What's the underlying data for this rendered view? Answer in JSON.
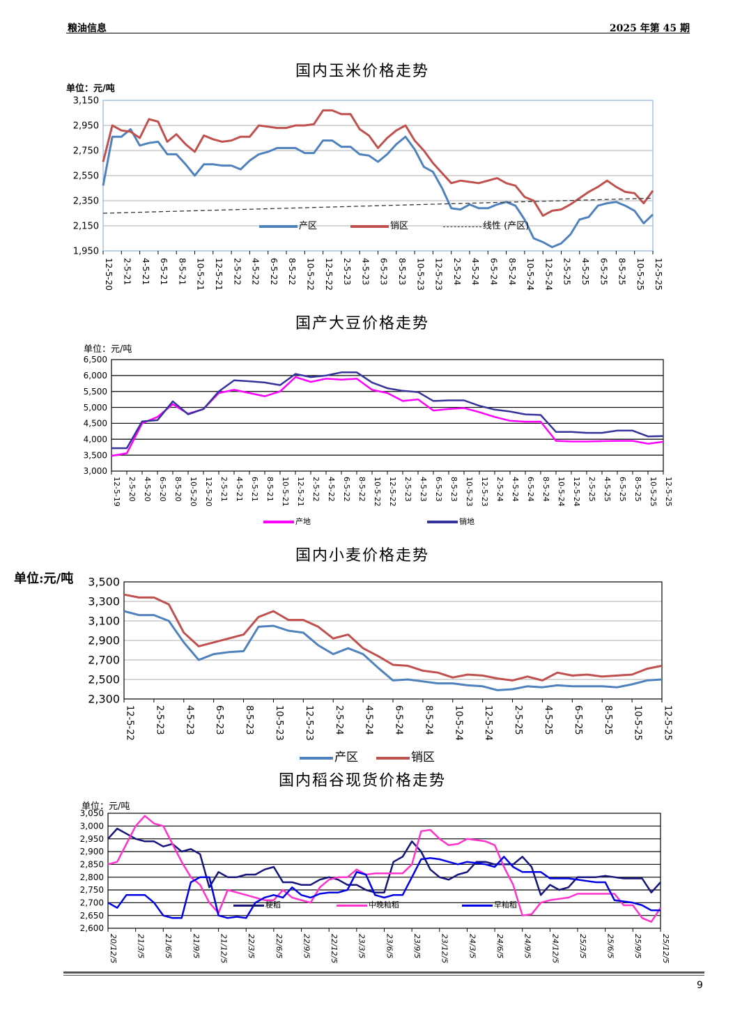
{
  "header": {
    "left": "粮油信息",
    "right": "2025 年第 45 期"
  },
  "page_number": "9",
  "chart_data": [
    {
      "type": "line",
      "title": "国内玉米价格走势",
      "unit": "单位：元/吨",
      "ylim": [
        1950,
        3150
      ],
      "yticks": [
        "1,950",
        "2,150",
        "2,350",
        "2,550",
        "2,750",
        "2,950",
        "3,150"
      ],
      "xlim": [
        "2020-12",
        "2025-12"
      ],
      "xticks": [
        "12-5-20",
        "2-5-21",
        "4-5-21",
        "6-5-21",
        "8-5-21",
        "10-5-21",
        "12-5-21",
        "2-5-22",
        "4-5-22",
        "6-5-22",
        "8-5-22",
        "10-5-22",
        "12-5-22",
        "2-5-23",
        "4-5-23",
        "6-5-23",
        "8-5-23",
        "10-5-23",
        "12-5-23",
        "2-5-24",
        "4-5-24",
        "6-5-24",
        "8-5-24",
        "10-5-24",
        "12-5-24",
        "2-5-25",
        "4-5-25",
        "6-5-25",
        "8-5-25",
        "10-5-25",
        "12-5-25"
      ],
      "grid": true,
      "legend": "bottom-inside",
      "x": "monthly from 2020-12 to 2025-12",
      "series": [
        {
          "name": "产区",
          "color": "#4f81bd",
          "values": [
            2470,
            2860,
            2860,
            2920,
            2790,
            2810,
            2820,
            2720,
            2720,
            2640,
            2550,
            2640,
            2640,
            2630,
            2630,
            2600,
            2670,
            2720,
            2740,
            2770,
            2770,
            2770,
            2730,
            2730,
            2830,
            2830,
            2780,
            2780,
            2720,
            2710,
            2660,
            2720,
            2800,
            2860,
            2760,
            2620,
            2580,
            2450,
            2290,
            2280,
            2320,
            2290,
            2290,
            2320,
            2340,
            2310,
            2200,
            2050,
            2020,
            1980,
            2010,
            2080,
            2200,
            2220,
            2310,
            2330,
            2340,
            2310,
            2270,
            2170,
            2240
          ]
        },
        {
          "name": "销区",
          "color": "#c0504d",
          "values": [
            2660,
            2950,
            2910,
            2900,
            2850,
            3000,
            2980,
            2820,
            2880,
            2800,
            2740,
            2870,
            2840,
            2820,
            2830,
            2860,
            2860,
            2950,
            2940,
            2930,
            2930,
            2950,
            2950,
            2960,
            3070,
            3070,
            3040,
            3040,
            2920,
            2870,
            2770,
            2850,
            2910,
            2950,
            2830,
            2750,
            2650,
            2570,
            2490,
            2510,
            2500,
            2490,
            2510,
            2530,
            2490,
            2470,
            2380,
            2350,
            2230,
            2270,
            2280,
            2320,
            2370,
            2420,
            2460,
            2510,
            2460,
            2420,
            2410,
            2330,
            2430
          ]
        },
        {
          "name": "线性 (产区)",
          "color": "#333333",
          "dashed": true,
          "values": [
            2250,
            null,
            null,
            null,
            null,
            null,
            null,
            null,
            null,
            null,
            null,
            null,
            null,
            null,
            null,
            null,
            null,
            null,
            null,
            null,
            null,
            null,
            null,
            null,
            null,
            null,
            null,
            null,
            null,
            null,
            null,
            null,
            null,
            null,
            null,
            null,
            null,
            null,
            null,
            null,
            null,
            null,
            null,
            null,
            null,
            null,
            null,
            null,
            null,
            null,
            null,
            null,
            null,
            null,
            null,
            null,
            null,
            null,
            null,
            null,
            2370
          ]
        }
      ]
    },
    {
      "type": "line",
      "title": "国产大豆价格走势",
      "unit": "单位：元/吨",
      "ylim": [
        3000,
        6500
      ],
      "yticks": [
        "3,000",
        "3,500",
        "4,000",
        "4,500",
        "5,000",
        "5,500",
        "6,000",
        "6,500"
      ],
      "xlim": [
        "2019-12",
        "2025-12"
      ],
      "xticks": [
        "12-5-19",
        "2-5-20",
        "4-5-20",
        "6-5-20",
        "8-5-20",
        "10-5-20",
        "12-5-20",
        "2-5-21",
        "4-5-21",
        "6-5-21",
        "8-5-21",
        "10-5-21",
        "12-5-21",
        "2-5-22",
        "4-5-22",
        "6-5-22",
        "8-5-22",
        "10-5-22",
        "12-5-22",
        "2-5-23",
        "4-5-23",
        "6-5-23",
        "8-5-23",
        "10-5-23",
        "12-5-23",
        "2-5-24",
        "4-5-24",
        "6-5-24",
        "8-5-24",
        "10-5-24",
        "12-5-24",
        "2-5-25",
        "4-5-25",
        "6-5-25",
        "8-5-25",
        "10-5-25",
        "12-5-25"
      ],
      "grid": true,
      "legend": "bottom",
      "x": "bimonthly from 2019-12 to 2025-12",
      "series": [
        {
          "name": "产地",
          "color": "#ff00ff",
          "values": [
            3480,
            3560,
            4500,
            4700,
            5100,
            4800,
            4950,
            5450,
            5550,
            5450,
            5350,
            5500,
            5950,
            5800,
            5900,
            5870,
            5900,
            5550,
            5450,
            5200,
            5250,
            4900,
            4950,
            4980,
            4850,
            4700,
            4580,
            4550,
            4550,
            3950,
            3930,
            3930,
            3940,
            3950,
            3950,
            3860,
            3920
          ]
        },
        {
          "name": "销地",
          "color": "#333399",
          "values": [
            3720,
            3720,
            4560,
            4600,
            5190,
            4780,
            4950,
            5500,
            5850,
            5820,
            5780,
            5700,
            6050,
            5950,
            6000,
            6100,
            6100,
            5780,
            5600,
            5520,
            5480,
            5200,
            5220,
            5220,
            5050,
            4930,
            4870,
            4780,
            4760,
            4230,
            4230,
            4200,
            4200,
            4270,
            4270,
            4090,
            4100
          ]
        }
      ]
    },
    {
      "type": "line",
      "title": "国内小麦价格走势",
      "unit": "单位:元/吨",
      "ylim": [
        2300,
        3500
      ],
      "yticks": [
        "2,300",
        "2,500",
        "2,700",
        "2,900",
        "3,100",
        "3,300",
        "3,500"
      ],
      "xlim": [
        "2022-12",
        "2025-12"
      ],
      "xticks": [
        "12-5-22",
        "2-5-23",
        "4-5-23",
        "6-5-23",
        "8-5-23",
        "10-5-23",
        "12-5-23",
        "2-5-24",
        "4-5-24",
        "6-5-24",
        "8-5-24",
        "10-5-24",
        "12-5-24",
        "2-5-25",
        "4-5-25",
        "6-5-25",
        "8-5-25",
        "10-5-25",
        "12-5-25"
      ],
      "grid": true,
      "legend": "bottom-overlap",
      "x": "monthly from 2022-12 to 2025-12",
      "series": [
        {
          "name": "产区",
          "color": "#4f81bd",
          "values": [
            3200,
            3160,
            3160,
            3100,
            2880,
            2700,
            2760,
            2780,
            2790,
            3040,
            3050,
            3000,
            2980,
            2850,
            2760,
            2820,
            2760,
            2620,
            2490,
            2500,
            2480,
            2460,
            2460,
            2440,
            2430,
            2390,
            2400,
            2430,
            2420,
            2440,
            2430,
            2430,
            2430,
            2420,
            2450,
            2490,
            2500
          ]
        },
        {
          "name": "销区",
          "color": "#c0504d",
          "values": [
            3370,
            3340,
            3340,
            3270,
            2980,
            2840,
            2880,
            2920,
            2960,
            3140,
            3200,
            3110,
            3110,
            3040,
            2920,
            2960,
            2820,
            2740,
            2650,
            2640,
            2590,
            2570,
            2520,
            2550,
            2540,
            2510,
            2490,
            2530,
            2490,
            2570,
            2540,
            2550,
            2530,
            2540,
            2550,
            2610,
            2640
          ]
        }
      ]
    },
    {
      "type": "line",
      "title": "国内稻谷现货价格走势",
      "unit": "单位：元/吨",
      "ylim": [
        2600,
        3050
      ],
      "yticks": [
        "2,600",
        "2,650",
        "2,700",
        "2,750",
        "2,800",
        "2,850",
        "2,900",
        "2,950",
        "3,000",
        "3,050"
      ],
      "xlim": [
        "2020-12",
        "2025-12"
      ],
      "xticks": [
        "20/12/5",
        "21/3/5",
        "21/6/5",
        "21/9/5",
        "21/12/5",
        "22/3/5",
        "22/6/5",
        "22/9/5",
        "22/12/5",
        "23/3/5",
        "23/6/5",
        "23/9/5",
        "23/12/5",
        "24/3/5",
        "24/6/5",
        "24/9/5",
        "24/12/5",
        "25/3/5",
        "25/6/5",
        "25/9/5",
        "25/12/5"
      ],
      "grid": true,
      "legend": "bottom-inside",
      "x": "monthly from 2020-12 to 2025-12",
      "series": [
        {
          "name": "粳稻",
          "color": "#14147a",
          "values": [
            2950,
            2990,
            2970,
            2950,
            2940,
            2940,
            2920,
            2930,
            2900,
            2910,
            2890,
            2760,
            2820,
            2800,
            2800,
            2810,
            2810,
            2830,
            2840,
            2780,
            2780,
            2770,
            2770,
            2790,
            2800,
            2790,
            2770,
            2770,
            2750,
            2740,
            2740,
            2860,
            2880,
            2940,
            2900,
            2830,
            2800,
            2790,
            2810,
            2820,
            2860,
            2860,
            2850,
            2850,
            2850,
            2880,
            2840,
            2730,
            2770,
            2750,
            2760,
            2800,
            2800,
            2800,
            2805,
            2800,
            2795,
            2795,
            2795,
            2740,
            2780
          ]
        },
        {
          "name": "中晚籼稻",
          "color": "#ff33cc",
          "values": [
            2850,
            2860,
            2930,
            3000,
            3040,
            3010,
            3000,
            2930,
            2860,
            2800,
            2770,
            2700,
            2660,
            2750,
            2740,
            2730,
            2720,
            2710,
            2710,
            2750,
            2720,
            2710,
            2700,
            2760,
            2790,
            2800,
            2800,
            2830,
            2810,
            2815,
            2815,
            2815,
            2815,
            2850,
            2980,
            2985,
            2950,
            2925,
            2930,
            2950,
            2945,
            2940,
            2925,
            2840,
            2770,
            2650,
            2655,
            2700,
            2710,
            2715,
            2720,
            2735,
            2735,
            2735,
            2735,
            2735,
            2690,
            2690,
            2640,
            2625,
            2680
          ]
        },
        {
          "name": "早籼稻",
          "color": "#0000e6",
          "values": [
            2700,
            2680,
            2730,
            2730,
            2730,
            2700,
            2650,
            2640,
            2640,
            2780,
            2800,
            2800,
            2650,
            2640,
            2645,
            2640,
            2700,
            2720,
            2730,
            2720,
            2760,
            2730,
            2720,
            2735,
            2740,
            2740,
            2750,
            2820,
            2810,
            2730,
            2720,
            2730,
            2730,
            2800,
            2870,
            2875,
            2870,
            2860,
            2850,
            2860,
            2855,
            2850,
            2840,
            2880,
            2840,
            2820,
            2820,
            2820,
            2795,
            2795,
            2795,
            2790,
            2785,
            2780,
            2780,
            2710,
            2705,
            2700,
            2690,
            2670,
            2670
          ]
        }
      ]
    }
  ]
}
